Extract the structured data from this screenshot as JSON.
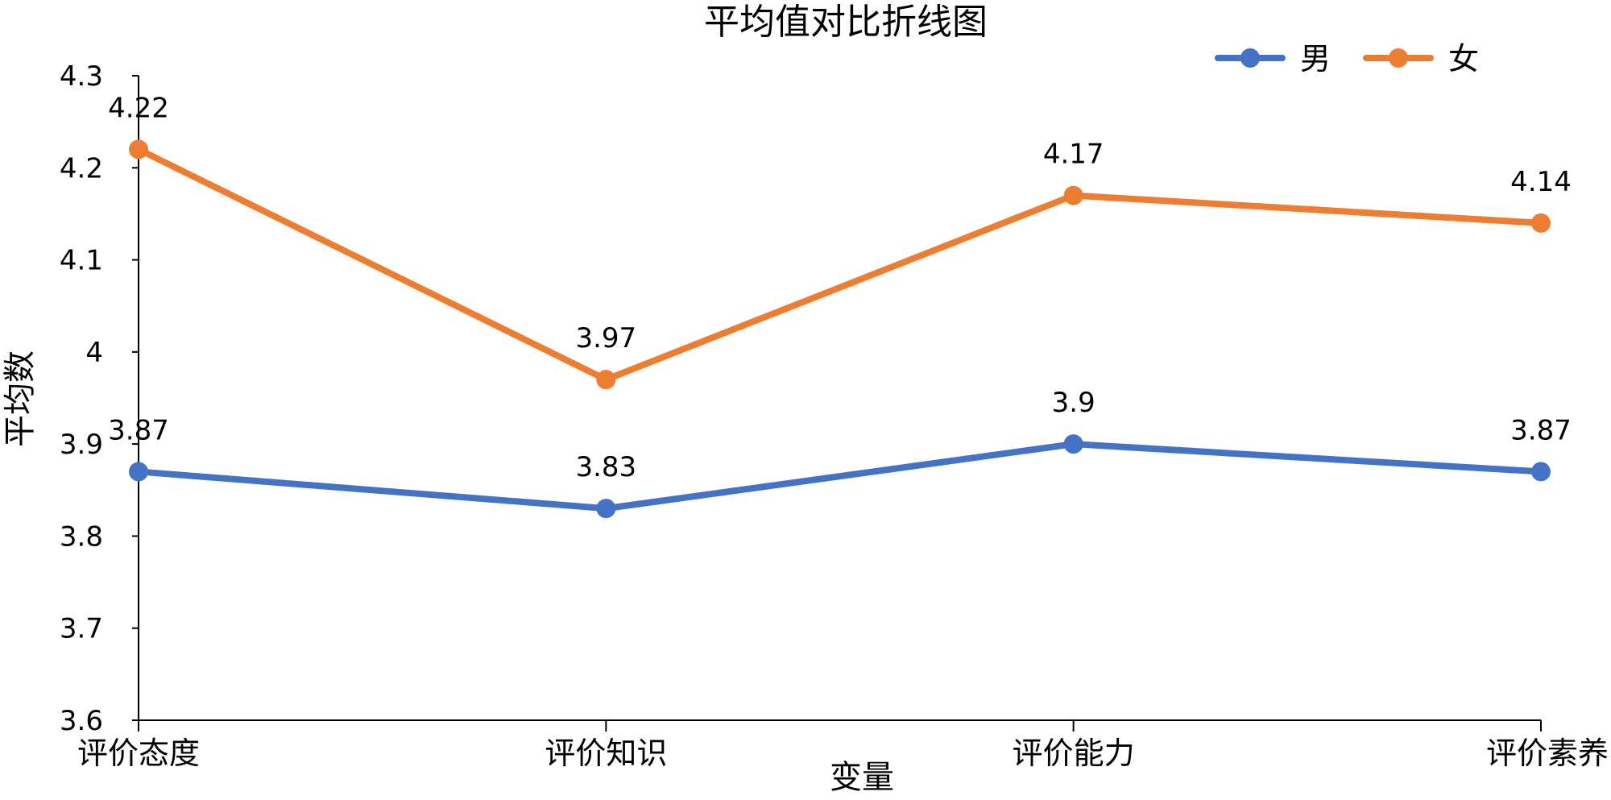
{
  "chart_data": {
    "type": "line",
    "title": "平均值对比折线图",
    "xlabel": "变量",
    "ylabel": "平均数",
    "categories": [
      "评价态度",
      "评价知识",
      "评价能力",
      "评价素养"
    ],
    "ylim": [
      3.6,
      4.3
    ],
    "yticks": [
      "3.6",
      "3.7",
      "3.8",
      "3.9",
      "4",
      "4.1",
      "4.2",
      "4.3"
    ],
    "grid": false,
    "legend_position": "top-right",
    "series": [
      {
        "name": "男",
        "color": "#4472C4",
        "values": [
          3.87,
          3.83,
          3.9,
          3.87
        ],
        "labels": [
          "3.87",
          "3.83",
          "3.9",
          "3.87"
        ]
      },
      {
        "name": "女",
        "color": "#ED7D31",
        "values": [
          4.22,
          3.97,
          4.17,
          4.14
        ],
        "labels": [
          "4.22",
          "3.97",
          "4.17",
          "4.14"
        ]
      }
    ]
  }
}
